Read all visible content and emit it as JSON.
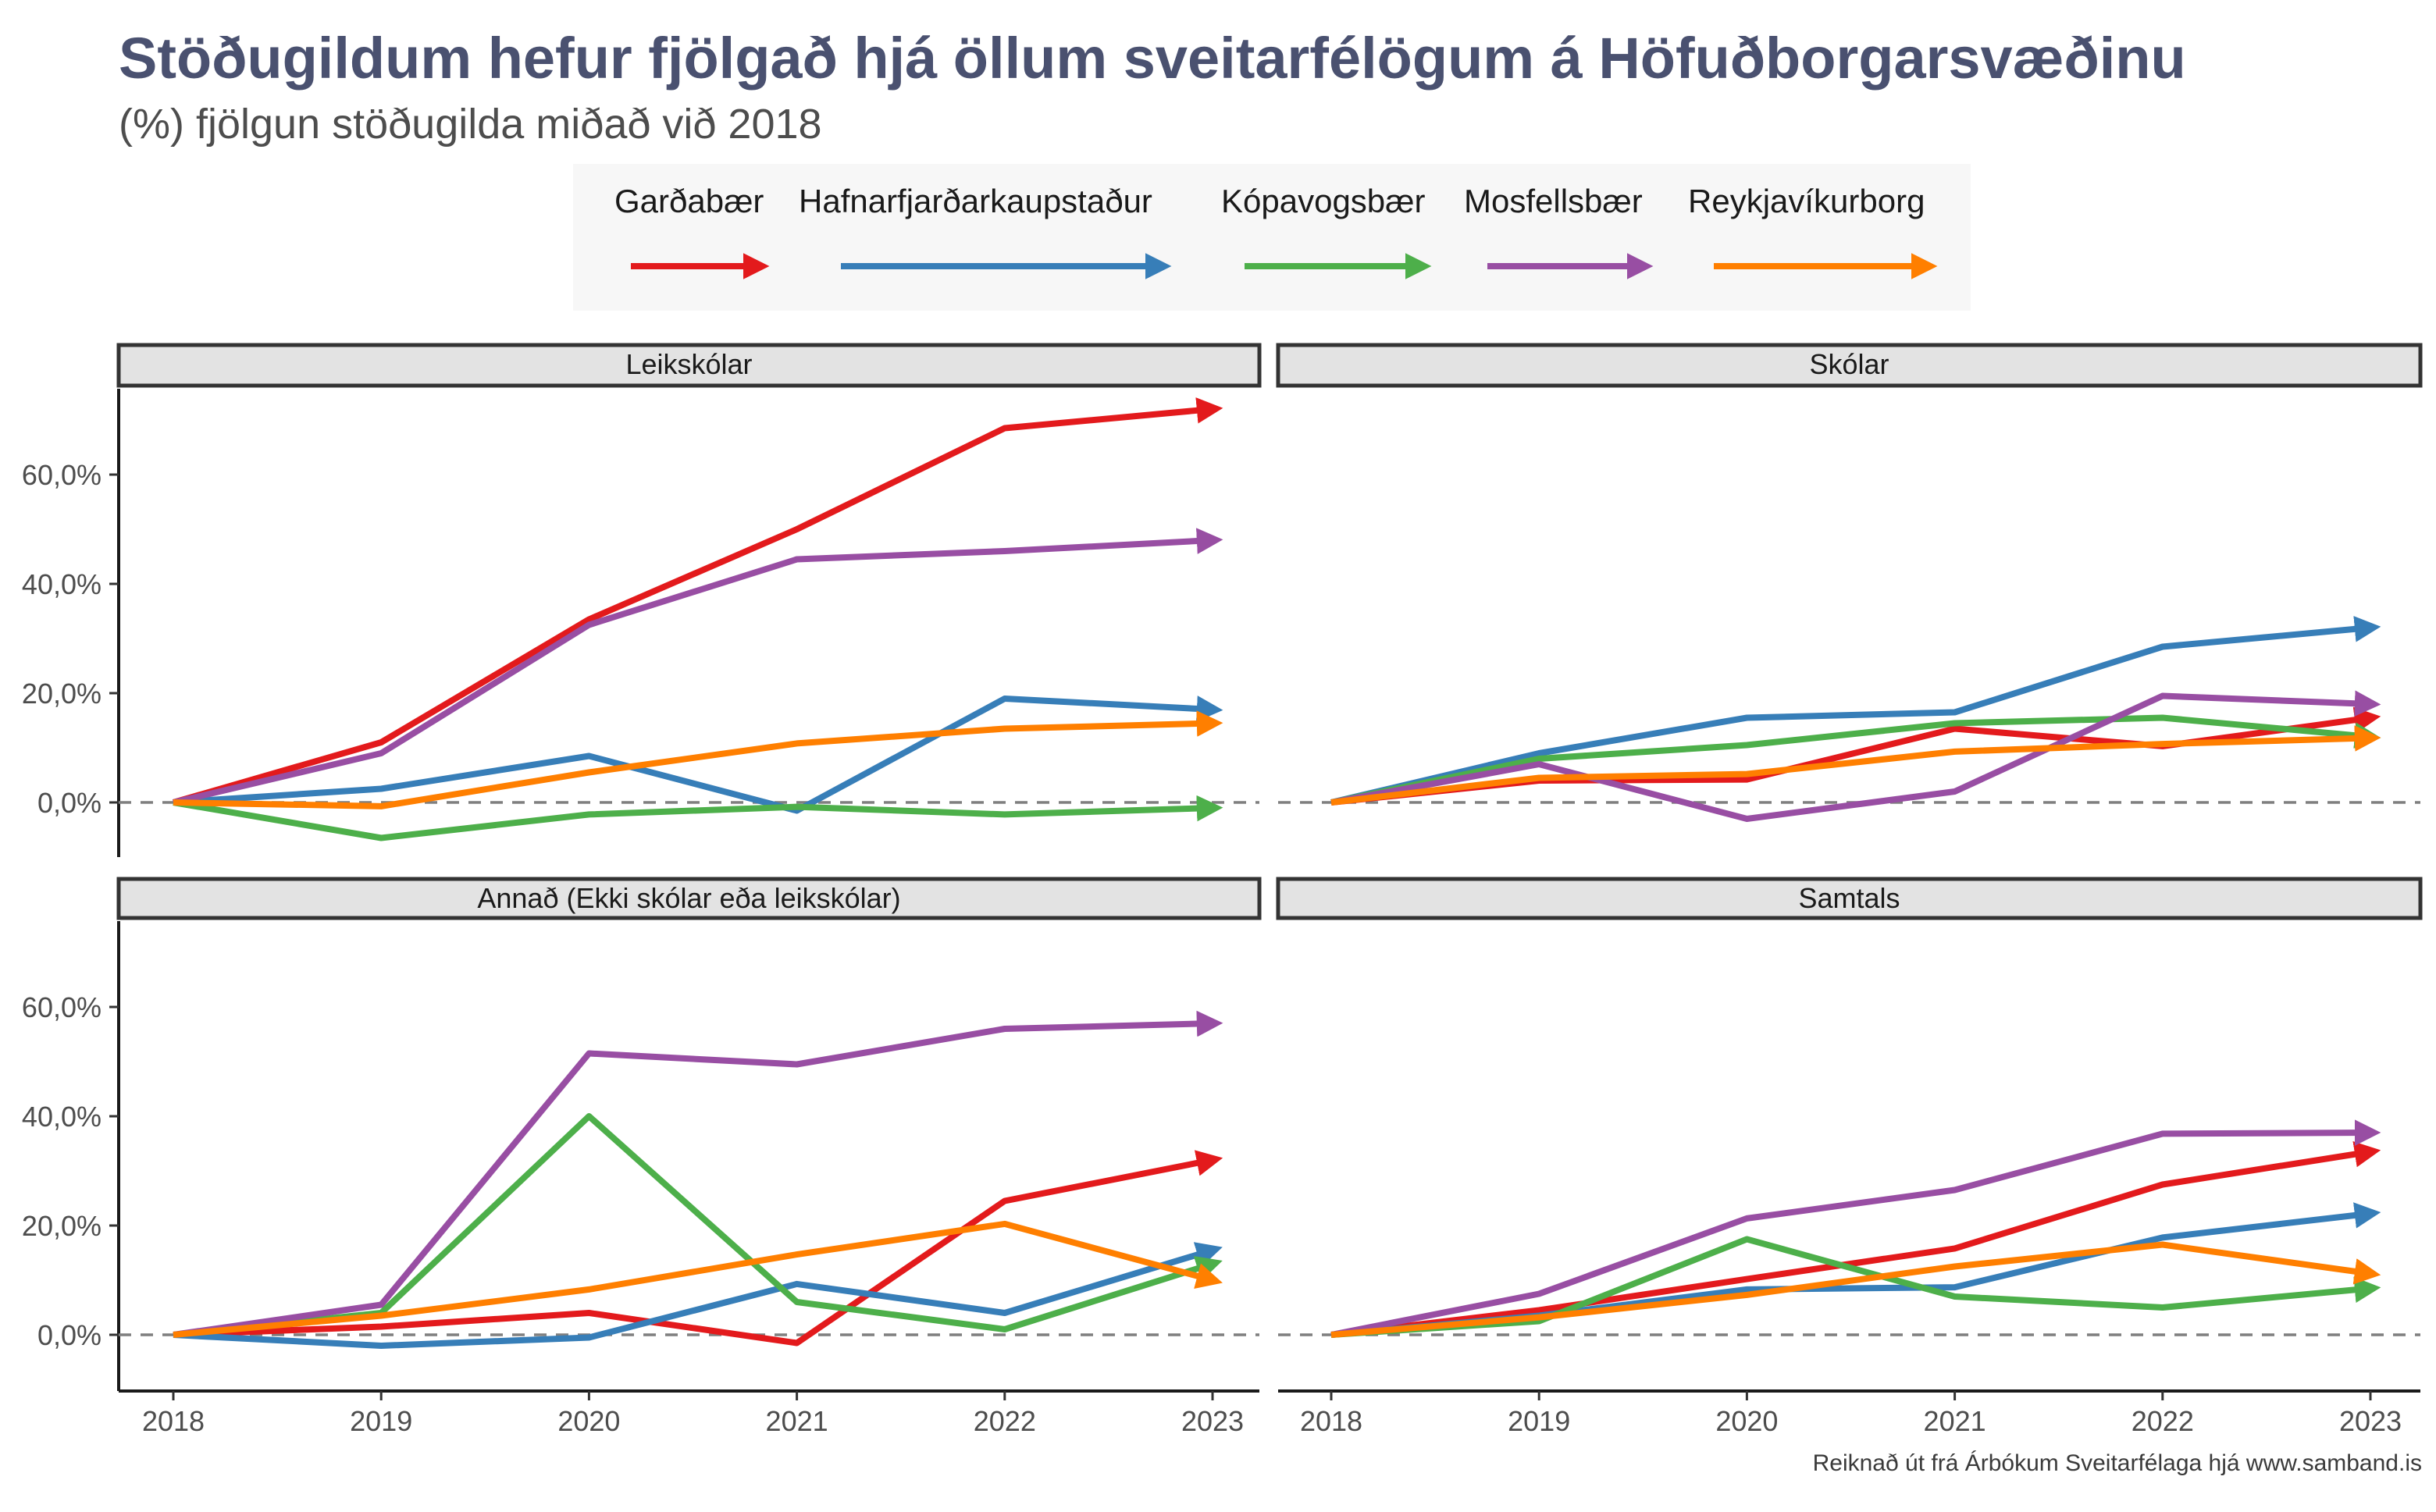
{
  "title": "Stöðugildum hefur fjölgað hjá öllum sveitarfélögum á Höfuðborgarsvæðinu",
  "subtitle": "(%) fjölgun stöðugilda miðað við 2018",
  "caption": "Reiknað út frá Árbókum Sveitarfélaga hjá www.samband.is",
  "chart_data": {
    "type": "line",
    "x": [
      "2018",
      "2019",
      "2020",
      "2021",
      "2022",
      "2023"
    ],
    "y_ticks": [
      "0,0%",
      "20,0%",
      "40,0%",
      "60,0%"
    ],
    "y_tick_values": [
      0,
      20,
      40,
      60
    ],
    "ylim": [
      -10,
      75
    ],
    "legend_position": "top",
    "reference_line": 0,
    "series_meta": [
      {
        "name": "Garðabær",
        "color": "#e31a1c"
      },
      {
        "name": "Hafnarfjarðarkaupstaður",
        "color": "#377eb8"
      },
      {
        "name": "Kópavogsbær",
        "color": "#4daf4a"
      },
      {
        "name": "Mosfellsbær",
        "color": "#984ea3"
      },
      {
        "name": "Reykjavíkurborg",
        "color": "#ff7f00"
      }
    ],
    "panels": [
      {
        "title": "Leikskólar",
        "series": [
          {
            "name": "Garðabær",
            "values": [
              0,
              11,
              33.5,
              50,
              68.5,
              72
            ]
          },
          {
            "name": "Hafnarfjarðarkaupstaður",
            "values": [
              0,
              2.5,
              8.5,
              -1.5,
              19,
              17
            ]
          },
          {
            "name": "Kópavogsbær",
            "values": [
              0,
              -6.5,
              -2.2,
              -0.8,
              -2.2,
              -1
            ]
          },
          {
            "name": "Mosfellsbær",
            "values": [
              0,
              9,
              32.5,
              44.5,
              46,
              48
            ]
          },
          {
            "name": "Reykjavíkurborg",
            "values": [
              0,
              -0.7,
              5.5,
              10.8,
              13.5,
              14.5
            ]
          }
        ]
      },
      {
        "title": "Skólar",
        "series": [
          {
            "name": "Garðabær",
            "values": [
              0,
              4,
              4.2,
              13.5,
              10.3,
              15.5
            ]
          },
          {
            "name": "Hafnarfjarðarkaupstaður",
            "values": [
              0,
              9,
              15.5,
              16.5,
              28.5,
              32
            ]
          },
          {
            "name": "Kópavogsbær",
            "values": [
              0,
              8,
              10.5,
              14.5,
              15.5,
              12
            ]
          },
          {
            "name": "Mosfellsbær",
            "values": [
              0,
              7,
              -3,
              2,
              19.5,
              18
            ]
          },
          {
            "name": "Reykjavíkurborg",
            "values": [
              0,
              4.5,
              5.2,
              9.3,
              10.7,
              11.8
            ]
          }
        ]
      },
      {
        "title": "Annað (Ekki skólar eða leikskólar)",
        "series": [
          {
            "name": "Garðabær",
            "values": [
              0,
              1.5,
              4,
              -1.5,
              24.5,
              32
            ]
          },
          {
            "name": "Hafnarfjarðarkaupstaður",
            "values": [
              0,
              -2,
              -0.5,
              9.3,
              4,
              15.5
            ]
          },
          {
            "name": "Kópavogsbær",
            "values": [
              0,
              4,
              40,
              6,
              1,
              13
            ]
          },
          {
            "name": "Mosfellsbær",
            "values": [
              0,
              5.5,
              51.5,
              49.5,
              56,
              57
            ]
          },
          {
            "name": "Reykjavíkurborg",
            "values": [
              0,
              3.5,
              8.3,
              14.7,
              20.3,
              10
            ]
          }
        ]
      },
      {
        "title": "Samtals",
        "series": [
          {
            "name": "Garðabær",
            "values": [
              0,
              4.5,
              10.2,
              15.8,
              27.5,
              33.5
            ]
          },
          {
            "name": "Hafnarfjarðarkaupstaður",
            "values": [
              0,
              3.5,
              8.3,
              8.7,
              17.8,
              22.2
            ]
          },
          {
            "name": "Kópavogsbær",
            "values": [
              0,
              2.5,
              17.5,
              7,
              5,
              8.5
            ]
          },
          {
            "name": "Mosfellsbær",
            "values": [
              0,
              7.5,
              21.3,
              26.5,
              36.8,
              37
            ]
          },
          {
            "name": "Reykjavíkurborg",
            "values": [
              0,
              3.2,
              7.3,
              12.5,
              16.5,
              11.2
            ]
          }
        ]
      }
    ]
  }
}
